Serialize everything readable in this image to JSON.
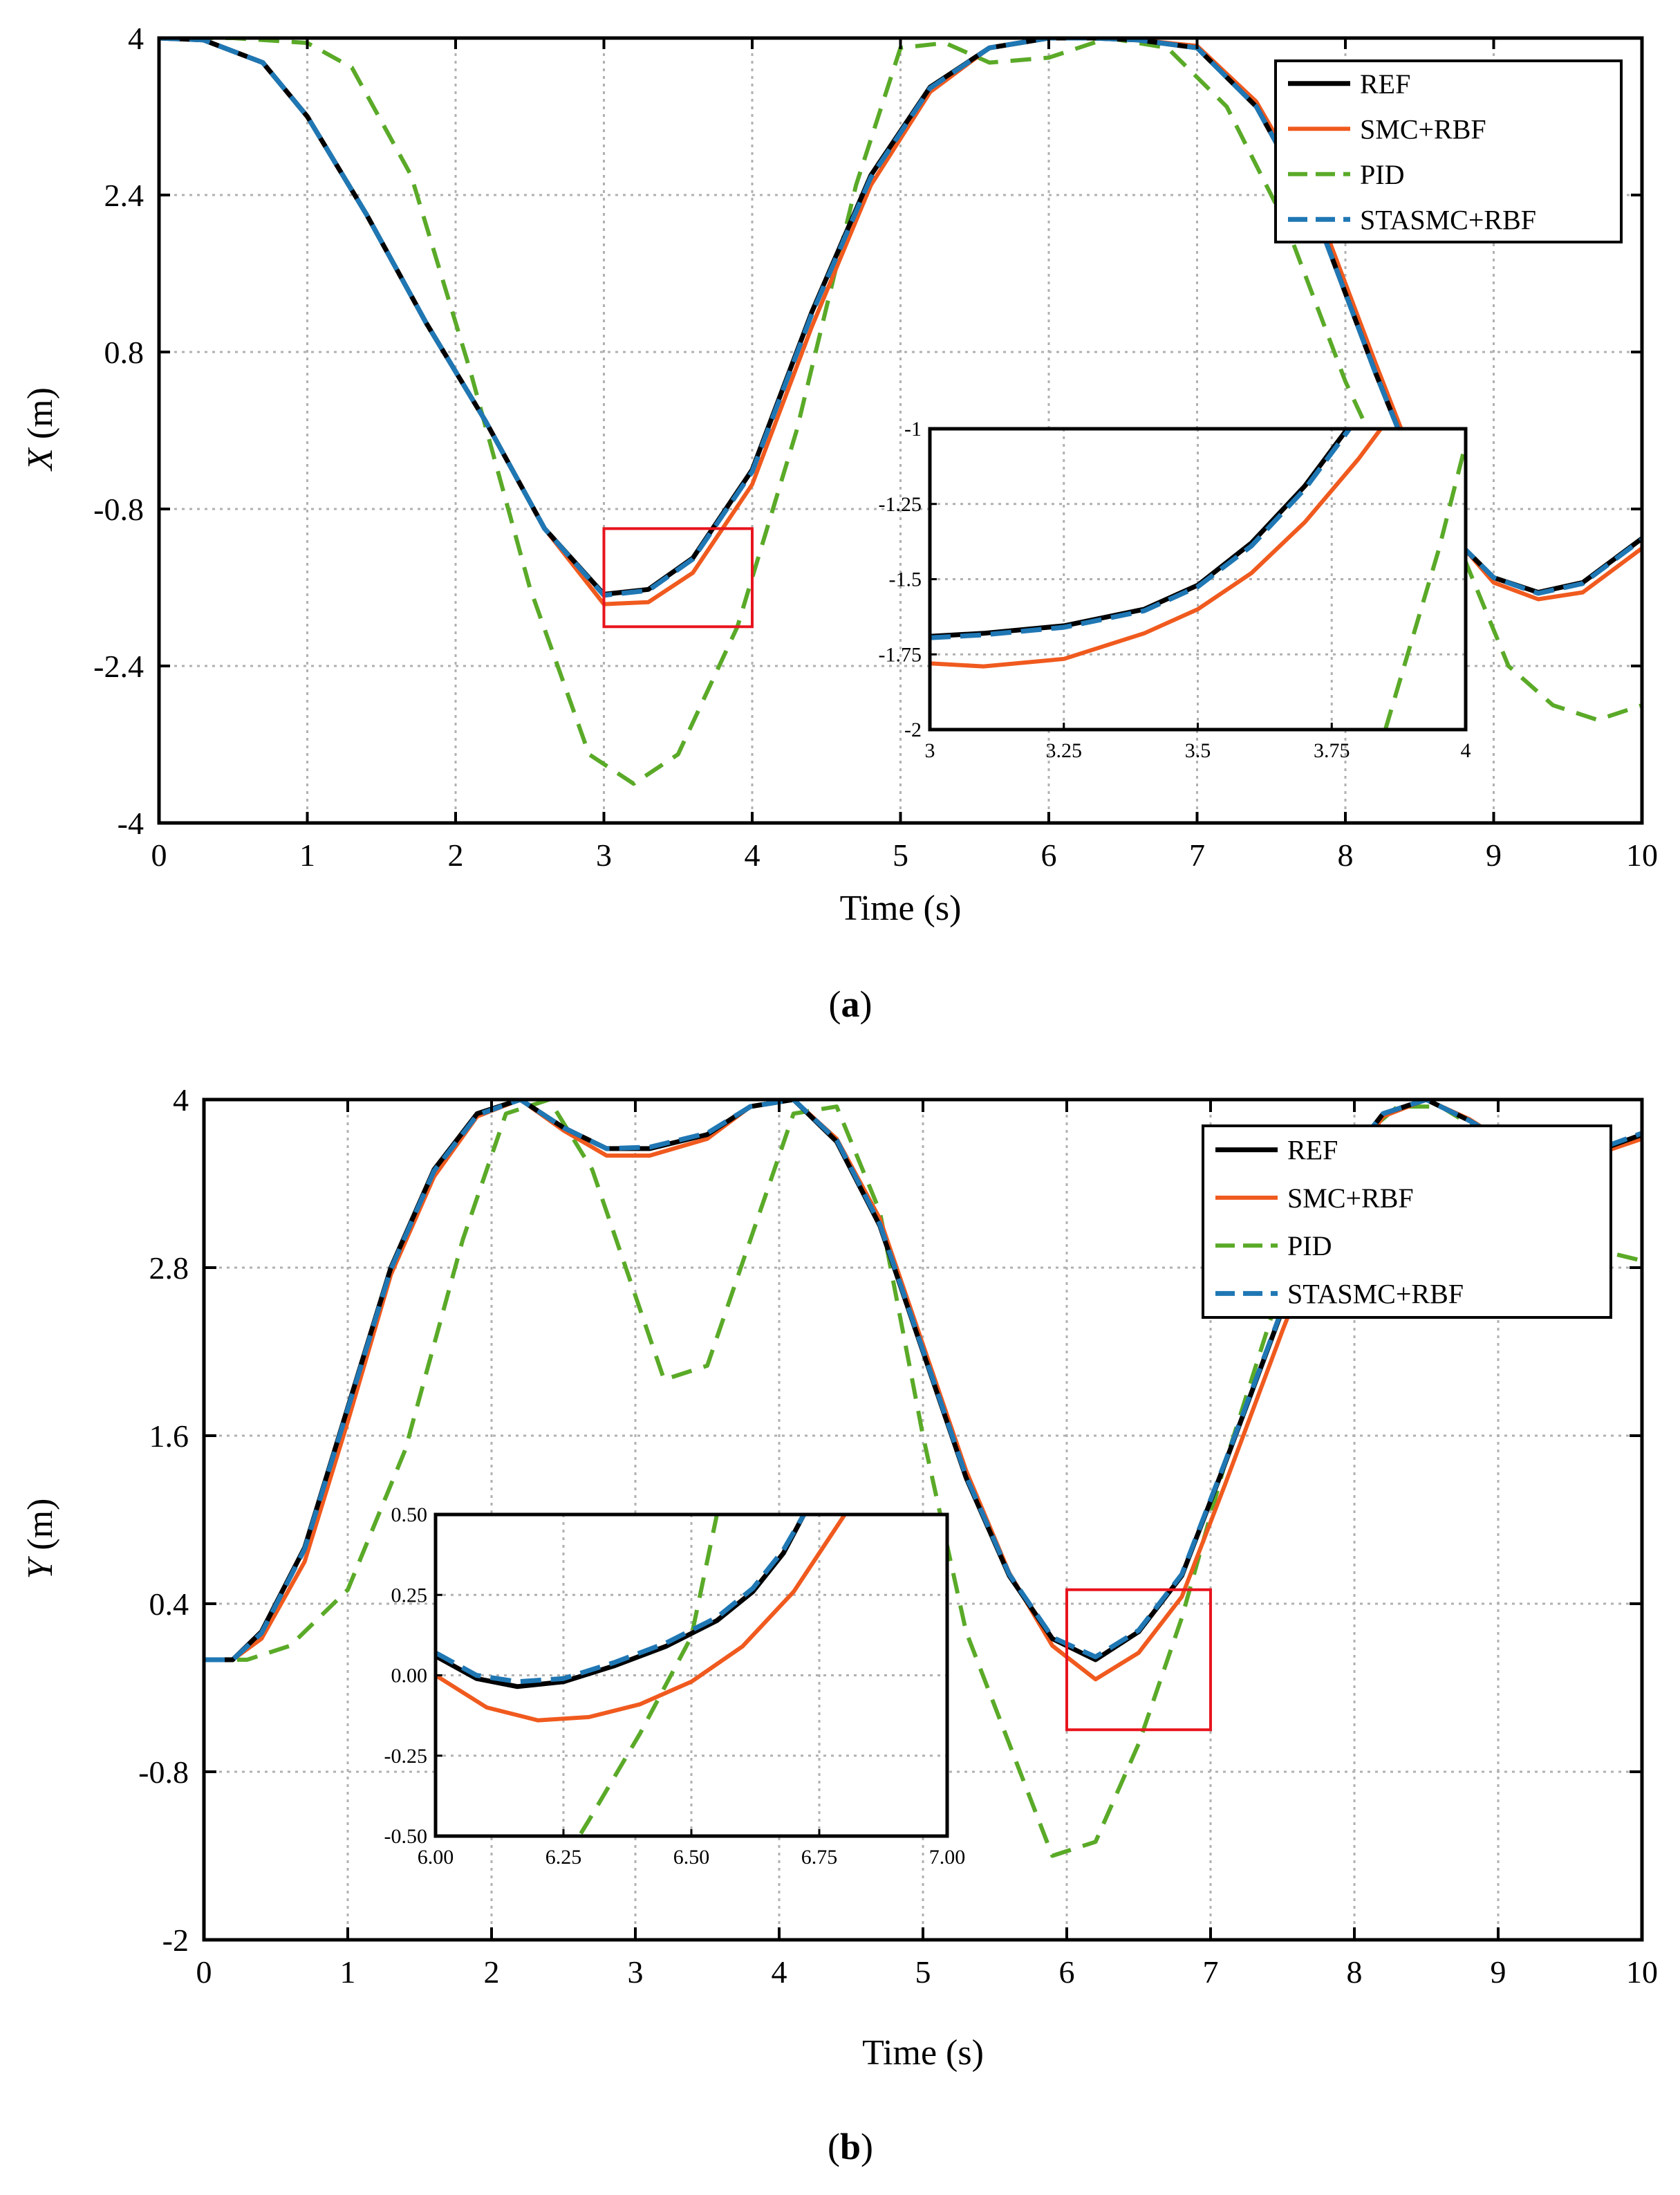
{
  "colors": {
    "REF": "#000000",
    "SMC+RBF": "#F05A1E",
    "PID": "#5AAA28",
    "STASMC+RBF": "#1F77B4",
    "zoom_box": "#E8141E",
    "grid": "#B0B0B0"
  },
  "chart_data": [
    {
      "type": "line",
      "caption": {
        "open": "(",
        "letter": "a",
        "close": ")"
      },
      "xlabel": "Time (s)",
      "ylabel": {
        "var": "X",
        "unit": "(m)"
      },
      "xlim": [
        0,
        10
      ],
      "ylim": [
        -4,
        4
      ],
      "xticks": [
        "0",
        "1",
        "2",
        "3",
        "4",
        "5",
        "6",
        "7",
        "8",
        "9",
        "10"
      ],
      "yticks": [
        {
          "v": 4,
          "label": "4"
        },
        {
          "v": 2.4,
          "label": "2.4"
        },
        {
          "v": 0.8,
          "label": "0.8"
        },
        {
          "v": -0.8,
          "label": "-0.8"
        },
        {
          "v": -2.4,
          "label": "-2.4"
        },
        {
          "v": -4,
          "label": "-4"
        }
      ],
      "legend": {
        "position": "top-right",
        "entries": [
          "REF",
          "SMC+RBF",
          "PID",
          "STASMC+RBF"
        ]
      },
      "series": [
        {
          "name": "REF",
          "style": "solid",
          "x": [
            0,
            0.3,
            0.7,
            1.0,
            1.4,
            1.8,
            2.2,
            2.6,
            3.0,
            3.3,
            3.6,
            4.0,
            4.4,
            4.8,
            5.2,
            5.6,
            6.0,
            6.3,
            6.6,
            7.0,
            7.4,
            7.8,
            8.2,
            8.6,
            9.0,
            9.3,
            9.6,
            10.0
          ],
          "y": [
            4,
            3.98,
            3.75,
            3.2,
            2.2,
            1.1,
            0.1,
            -1.0,
            -1.67,
            -1.62,
            -1.3,
            -0.4,
            1.2,
            2.6,
            3.5,
            3.9,
            4.0,
            4.0,
            3.98,
            3.9,
            3.3,
            2.2,
            0.6,
            -0.9,
            -1.5,
            -1.65,
            -1.55,
            -1.1
          ]
        },
        {
          "name": "SMC+RBF",
          "style": "solid",
          "x": [
            0,
            0.3,
            0.7,
            1.0,
            1.4,
            1.8,
            2.2,
            2.6,
            3.0,
            3.3,
            3.6,
            4.0,
            4.4,
            4.8,
            5.2,
            5.6,
            6.0,
            6.3,
            6.6,
            7.0,
            7.4,
            7.8,
            8.2,
            8.6,
            9.0,
            9.3,
            9.6,
            10.0
          ],
          "y": [
            4,
            3.98,
            3.75,
            3.2,
            2.2,
            1.1,
            0.1,
            -1.0,
            -1.77,
            -1.75,
            -1.45,
            -0.55,
            1.05,
            2.5,
            3.45,
            3.9,
            4.0,
            4.0,
            3.98,
            3.92,
            3.35,
            2.3,
            0.7,
            -0.85,
            -1.55,
            -1.72,
            -1.65,
            -1.2
          ]
        },
        {
          "name": "PID",
          "style": "dashed",
          "x": [
            0,
            0.5,
            1.0,
            1.3,
            1.7,
            2.1,
            2.5,
            2.9,
            3.2,
            3.5,
            3.9,
            4.3,
            4.7,
            5.0,
            5.3,
            5.6,
            6.0,
            6.4,
            6.8,
            7.2,
            7.6,
            8.0,
            8.4,
            8.8,
            9.1,
            9.4,
            9.7,
            10.0
          ],
          "y": [
            4,
            4.0,
            3.95,
            3.7,
            2.6,
            0.6,
            -1.6,
            -3.3,
            -3.6,
            -3.3,
            -2.0,
            0.0,
            2.5,
            3.9,
            3.95,
            3.75,
            3.8,
            4.0,
            3.9,
            3.3,
            2.1,
            0.5,
            -0.8,
            -1.3,
            -2.4,
            -2.8,
            -2.95,
            -2.8
          ]
        },
        {
          "name": "STASMC+RBF",
          "style": "dashed",
          "x": [
            0,
            0.3,
            0.7,
            1.0,
            1.4,
            1.8,
            2.2,
            2.6,
            3.0,
            3.3,
            3.6,
            4.0,
            4.4,
            4.8,
            5.2,
            5.6,
            6.0,
            6.3,
            6.6,
            7.0,
            7.4,
            7.8,
            8.2,
            8.6,
            9.0,
            9.3,
            9.6,
            10.0
          ],
          "y": [
            4,
            3.98,
            3.75,
            3.2,
            2.2,
            1.1,
            0.1,
            -1.0,
            -1.68,
            -1.63,
            -1.31,
            -0.42,
            1.18,
            2.58,
            3.49,
            3.9,
            4.0,
            4.0,
            3.98,
            3.9,
            3.3,
            2.2,
            0.6,
            -0.9,
            -1.5,
            -1.66,
            -1.56,
            -1.11
          ]
        }
      ],
      "zoom_box": {
        "x": [
          3,
          4
        ],
        "y": [
          -2,
          -1
        ]
      },
      "inset": {
        "xlim": [
          3,
          4
        ],
        "ylim": [
          -2,
          -1
        ],
        "xticks": [
          "3",
          "3.25",
          "3.5",
          "3.75",
          "4"
        ],
        "yticks": [
          "-1",
          "-1.25",
          "-1.5",
          "-1.75",
          "-2"
        ],
        "series": [
          {
            "name": "REF",
            "x": [
              3,
              3.1,
              3.25,
              3.4,
              3.5,
              3.6,
              3.7,
              3.75,
              3.8
            ],
            "y": [
              -1.69,
              -1.68,
              -1.655,
              -1.6,
              -1.52,
              -1.38,
              -1.19,
              -1.07,
              -0.95
            ]
          },
          {
            "name": "SMC+RBF",
            "x": [
              3,
              3.1,
              3.25,
              3.4,
              3.5,
              3.6,
              3.7,
              3.8,
              3.85
            ],
            "y": [
              -1.78,
              -1.79,
              -1.765,
              -1.68,
              -1.6,
              -1.48,
              -1.31,
              -1.1,
              -0.98
            ]
          },
          {
            "name": "PID",
            "x": [
              3.85,
              3.9,
              3.95,
              4.0
            ],
            "y": [
              -2.0,
              -1.7,
              -1.4,
              -1.05
            ]
          },
          {
            "name": "STASMC+RBF",
            "x": [
              3,
              3.1,
              3.25,
              3.4,
              3.5,
              3.6,
              3.7,
              3.75,
              3.8
            ],
            "y": [
              -1.695,
              -1.685,
              -1.66,
              -1.605,
              -1.525,
              -1.39,
              -1.2,
              -1.08,
              -0.96
            ]
          }
        ]
      }
    },
    {
      "type": "line",
      "caption": {
        "open": "(",
        "letter": "b",
        "close": ")"
      },
      "xlabel": "Time (s)",
      "ylabel": {
        "var": "Y",
        "unit": "(m)"
      },
      "xlim": [
        0,
        10
      ],
      "ylim": [
        -2,
        4
      ],
      "xticks": [
        "0",
        "1",
        "2",
        "3",
        "4",
        "5",
        "6",
        "7",
        "8",
        "9",
        "10"
      ],
      "yticks": [
        {
          "v": 4,
          "label": "4"
        },
        {
          "v": 2.8,
          "label": "2.8"
        },
        {
          "v": 1.6,
          "label": "1.6"
        },
        {
          "v": 0.4,
          "label": "0.4"
        },
        {
          "v": -0.8,
          "label": "-0.8"
        },
        {
          "v": -2,
          "label": "-2"
        }
      ],
      "legend": {
        "position": "top-right",
        "entries": [
          "REF",
          "SMC+RBF",
          "PID",
          "STASMC+RBF"
        ]
      },
      "series": [
        {
          "name": "REF",
          "style": "solid",
          "x": [
            0,
            0.2,
            0.4,
            0.7,
            1.0,
            1.3,
            1.6,
            1.9,
            2.2,
            2.5,
            2.8,
            3.1,
            3.5,
            3.8,
            4.1,
            4.4,
            4.7,
            5.0,
            5.3,
            5.6,
            5.9,
            6.2,
            6.5,
            6.8,
            7.1,
            7.5,
            7.9,
            8.2,
            8.5,
            8.8,
            9.2,
            9.6,
            10.0
          ],
          "y": [
            0,
            0.0,
            0.2,
            0.8,
            1.8,
            2.8,
            3.5,
            3.9,
            4.0,
            3.8,
            3.65,
            3.65,
            3.75,
            3.95,
            4.0,
            3.7,
            3.1,
            2.2,
            1.3,
            0.6,
            0.15,
            0.0,
            0.2,
            0.6,
            1.4,
            2.5,
            3.5,
            3.9,
            4.0,
            3.85,
            3.6,
            3.6,
            3.75
          ]
        },
        {
          "name": "SMC+RBF",
          "style": "solid",
          "x": [
            0,
            0.2,
            0.4,
            0.7,
            1.0,
            1.3,
            1.6,
            1.9,
            2.2,
            2.5,
            2.8,
            3.1,
            3.5,
            3.8,
            4.1,
            4.4,
            4.7,
            5.0,
            5.3,
            5.6,
            5.9,
            6.2,
            6.5,
            6.8,
            7.1,
            7.5,
            7.9,
            8.2,
            8.5,
            8.8,
            9.2,
            9.6,
            10.0
          ],
          "y": [
            0,
            0.0,
            0.15,
            0.7,
            1.7,
            2.75,
            3.45,
            3.88,
            4.0,
            3.78,
            3.6,
            3.6,
            3.72,
            3.95,
            4.0,
            3.72,
            3.15,
            2.25,
            1.35,
            0.62,
            0.1,
            -0.14,
            0.05,
            0.45,
            1.25,
            2.35,
            3.4,
            3.88,
            4.0,
            3.86,
            3.6,
            3.58,
            3.72
          ]
        },
        {
          "name": "PID",
          "style": "dashed",
          "x": [
            0,
            0.3,
            0.6,
            1.0,
            1.4,
            1.8,
            2.1,
            2.4,
            2.7,
            3.0,
            3.2,
            3.5,
            3.8,
            4.1,
            4.4,
            4.7,
            5.0,
            5.3,
            5.6,
            5.9,
            6.2,
            6.5,
            6.8,
            7.1,
            7.5,
            7.9,
            8.3,
            8.6,
            9.0,
            9.4,
            9.8,
            10.0
          ],
          "y": [
            0,
            0.0,
            0.1,
            0.5,
            1.5,
            3.0,
            3.9,
            4.0,
            3.5,
            2.6,
            2.0,
            2.1,
            3.0,
            3.9,
            3.95,
            3.2,
            1.6,
            0.2,
            -0.6,
            -1.4,
            -1.3,
            -0.6,
            0.3,
            1.4,
            2.7,
            3.6,
            3.95,
            3.95,
            3.7,
            3.2,
            2.9,
            2.85
          ]
        },
        {
          "name": "STASMC+RBF",
          "style": "dashed",
          "x": [
            0,
            0.2,
            0.4,
            0.7,
            1.0,
            1.3,
            1.6,
            1.9,
            2.2,
            2.5,
            2.8,
            3.1,
            3.5,
            3.8,
            4.1,
            4.4,
            4.7,
            5.0,
            5.3,
            5.6,
            5.9,
            6.2,
            6.5,
            6.8,
            7.1,
            7.5,
            7.9,
            8.2,
            8.5,
            8.8,
            9.2,
            9.6,
            10.0
          ],
          "y": [
            0,
            0.0,
            0.19,
            0.79,
            1.79,
            2.79,
            3.49,
            3.89,
            4.0,
            3.8,
            3.65,
            3.66,
            3.76,
            3.95,
            4.0,
            3.71,
            3.11,
            2.21,
            1.31,
            0.61,
            0.16,
            0.02,
            0.21,
            0.61,
            1.41,
            2.51,
            3.51,
            3.9,
            4.0,
            3.85,
            3.61,
            3.61,
            3.76
          ]
        }
      ],
      "zoom_box": {
        "x": [
          6,
          7
        ],
        "y": [
          -0.5,
          0.5
        ]
      },
      "inset": {
        "xlim": [
          6,
          7
        ],
        "ylim": [
          -0.5,
          0.5
        ],
        "xticks": [
          "6.00",
          "6.25",
          "6.50",
          "6.75",
          "7.00"
        ],
        "yticks": [
          "0.50",
          "0.25",
          "0.00",
          "-0.25",
          "-0.50"
        ],
        "series": [
          {
            "name": "REF",
            "x": [
              6.0,
              6.08,
              6.16,
              6.25,
              6.35,
              6.45,
              6.55,
              6.62,
              6.68,
              6.72
            ],
            "y": [
              0.06,
              -0.01,
              -0.035,
              -0.02,
              0.03,
              0.09,
              0.17,
              0.26,
              0.38,
              0.5
            ]
          },
          {
            "name": "SMC+RBF",
            "x": [
              6.0,
              6.1,
              6.2,
              6.3,
              6.4,
              6.5,
              6.6,
              6.7,
              6.75,
              6.8
            ],
            "y": [
              0.0,
              -0.1,
              -0.14,
              -0.13,
              -0.09,
              -0.02,
              0.09,
              0.26,
              0.38,
              0.5
            ]
          },
          {
            "name": "PID",
            "x": [
              6.25,
              6.3,
              6.4,
              6.5,
              6.55
            ],
            "y": [
              -0.58,
              -0.45,
              -0.18,
              0.12,
              0.5
            ]
          },
          {
            "name": "STASMC+RBF",
            "x": [
              6.0,
              6.08,
              6.16,
              6.25,
              6.35,
              6.45,
              6.55,
              6.62,
              6.68,
              6.72
            ],
            "y": [
              0.07,
              0.0,
              -0.02,
              -0.01,
              0.04,
              0.1,
              0.18,
              0.27,
              0.39,
              0.5
            ]
          }
        ]
      }
    }
  ]
}
